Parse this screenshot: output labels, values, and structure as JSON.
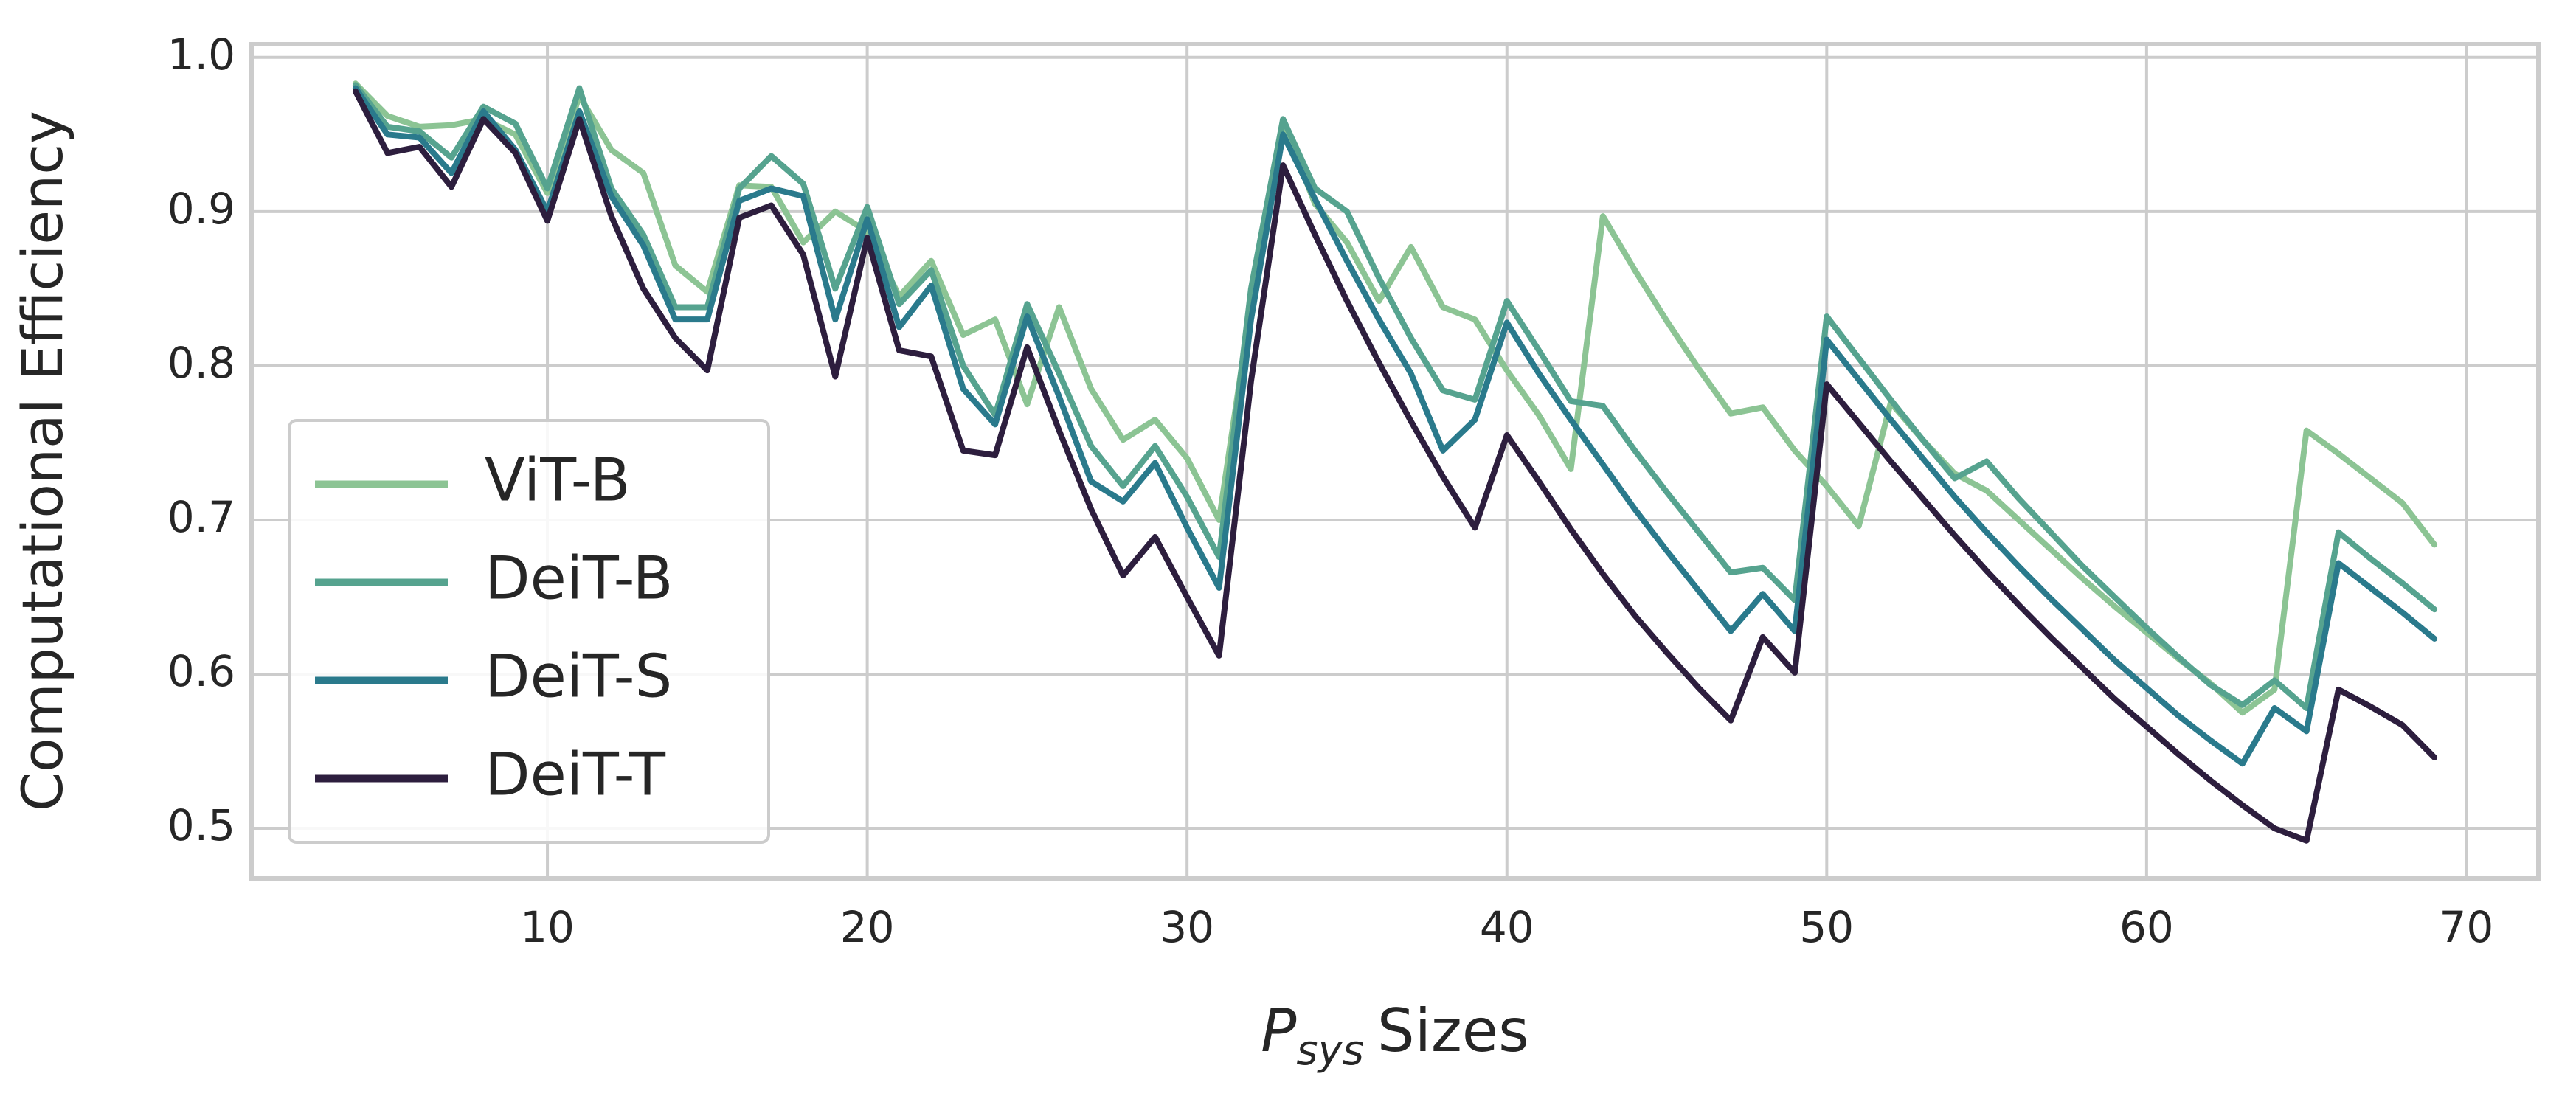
{
  "chart_data": {
    "type": "line",
    "x_label": {
      "symbol": "P",
      "subscript": "sys",
      "text": "Sizes"
    },
    "y_label": "Computational Efficiency",
    "x": [
      4,
      5,
      6,
      7,
      8,
      9,
      10,
      11,
      12,
      13,
      14,
      15,
      16,
      17,
      18,
      19,
      20,
      21,
      22,
      23,
      24,
      25,
      26,
      27,
      28,
      29,
      30,
      31,
      32,
      33,
      34,
      35,
      36,
      37,
      38,
      39,
      40,
      41,
      42,
      43,
      44,
      45,
      46,
      47,
      48,
      49,
      50,
      51,
      52,
      53,
      54,
      55,
      56,
      57,
      58,
      59,
      60,
      61,
      62,
      63,
      64,
      65,
      66,
      67,
      68,
      69
    ],
    "series": [
      {
        "name": "ViT-B",
        "color": "#8cc494",
        "values": [
          0.983,
          0.962,
          0.955,
          0.956,
          0.96,
          0.95,
          0.912,
          0.975,
          0.94,
          0.925,
          0.865,
          0.848,
          0.917,
          0.916,
          0.88,
          0.9,
          0.887,
          0.845,
          0.868,
          0.82,
          0.83,
          0.775,
          0.838,
          0.785,
          0.752,
          0.765,
          0.74,
          0.7,
          0.84,
          0.958,
          0.905,
          0.88,
          0.842,
          0.877,
          0.838,
          0.83,
          0.797,
          0.768,
          0.733,
          0.897,
          0.862,
          0.829,
          0.798,
          0.769,
          0.773,
          0.745,
          0.722,
          0.696,
          0.776,
          0.752,
          0.73,
          0.719,
          0.7,
          0.681,
          0.662,
          0.644,
          0.627,
          0.61,
          0.594,
          0.575,
          0.59,
          0.758,
          0.743,
          0.727,
          0.711,
          0.684
        ]
      },
      {
        "name": "DeiT-B",
        "color": "#56a38f",
        "values": [
          0.982,
          0.955,
          0.952,
          0.935,
          0.968,
          0.957,
          0.915,
          0.98,
          0.915,
          0.885,
          0.838,
          0.838,
          0.915,
          0.936,
          0.918,
          0.85,
          0.903,
          0.84,
          0.862,
          0.8,
          0.768,
          0.84,
          0.795,
          0.748,
          0.722,
          0.748,
          0.715,
          0.676,
          0.85,
          0.96,
          0.915,
          0.9,
          0.857,
          0.818,
          0.784,
          0.778,
          0.842,
          0.81,
          0.777,
          0.774,
          0.745,
          0.718,
          0.692,
          0.666,
          0.669,
          0.648,
          0.832,
          0.805,
          0.778,
          0.752,
          0.727,
          0.738,
          0.714,
          0.692,
          0.67,
          0.65,
          0.63,
          0.611,
          0.593,
          0.58,
          0.596,
          0.578,
          0.692,
          0.675,
          0.659,
          0.642
        ]
      },
      {
        "name": "DeiT-S",
        "color": "#2a7a8c",
        "values": [
          0.98,
          0.95,
          0.948,
          0.925,
          0.965,
          0.94,
          0.9,
          0.965,
          0.91,
          0.878,
          0.83,
          0.83,
          0.907,
          0.915,
          0.91,
          0.83,
          0.895,
          0.825,
          0.852,
          0.785,
          0.762,
          0.832,
          0.78,
          0.725,
          0.712,
          0.737,
          0.695,
          0.656,
          0.83,
          0.95,
          0.908,
          0.868,
          0.83,
          0.795,
          0.745,
          0.765,
          0.828,
          0.795,
          0.765,
          0.736,
          0.707,
          0.68,
          0.654,
          0.628,
          0.652,
          0.628,
          0.817,
          0.791,
          0.765,
          0.74,
          0.715,
          0.692,
          0.67,
          0.649,
          0.629,
          0.609,
          0.591,
          0.573,
          0.557,
          0.542,
          0.578,
          0.563,
          0.672,
          0.656,
          0.64,
          0.623
        ]
      },
      {
        "name": "DeiT-T",
        "color": "#2d1e3e",
        "values": [
          0.978,
          0.938,
          0.942,
          0.916,
          0.96,
          0.938,
          0.894,
          0.96,
          0.897,
          0.85,
          0.818,
          0.797,
          0.896,
          0.904,
          0.872,
          0.793,
          0.883,
          0.81,
          0.806,
          0.745,
          0.742,
          0.812,
          0.758,
          0.707,
          0.664,
          0.689,
          0.65,
          0.612,
          0.79,
          0.93,
          0.885,
          0.842,
          0.802,
          0.764,
          0.728,
          0.695,
          0.755,
          0.725,
          0.694,
          0.665,
          0.638,
          0.614,
          0.591,
          0.57,
          0.624,
          0.601,
          0.788,
          0.763,
          0.738,
          0.714,
          0.69,
          0.667,
          0.645,
          0.624,
          0.604,
          0.584,
          0.566,
          0.548,
          0.531,
          0.515,
          0.5,
          0.492,
          0.59,
          0.579,
          0.567,
          0.546
        ]
      }
    ],
    "xlim": [
      0.75,
      72.25
    ],
    "xticks": [
      10,
      20,
      30,
      40,
      50,
      60,
      70
    ],
    "ylim": [
      0.4675,
      1.0085
    ],
    "yticks": [
      0.5,
      0.6,
      0.7,
      0.8,
      0.9,
      {
        "value": 1,
        "label": "1.0"
      }
    ],
    "grid": true,
    "legend": "lower left"
  }
}
